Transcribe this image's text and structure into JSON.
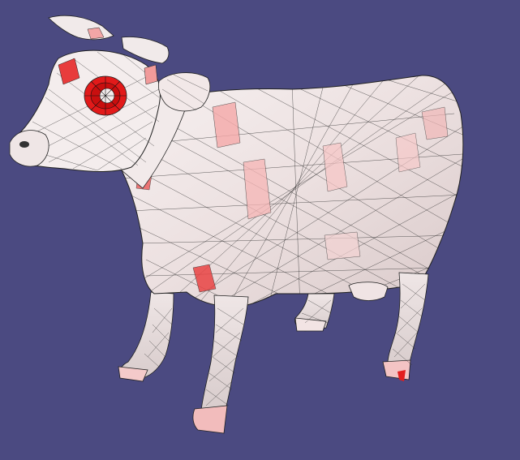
{
  "viewer": {
    "background_color": "#4b4a81",
    "model_name": "cow",
    "render_mode": "wireframe-shaded",
    "base_color": "#f3ecec",
    "highlight_color": "#e61e1e",
    "edge_color": "#1a1a1a"
  }
}
